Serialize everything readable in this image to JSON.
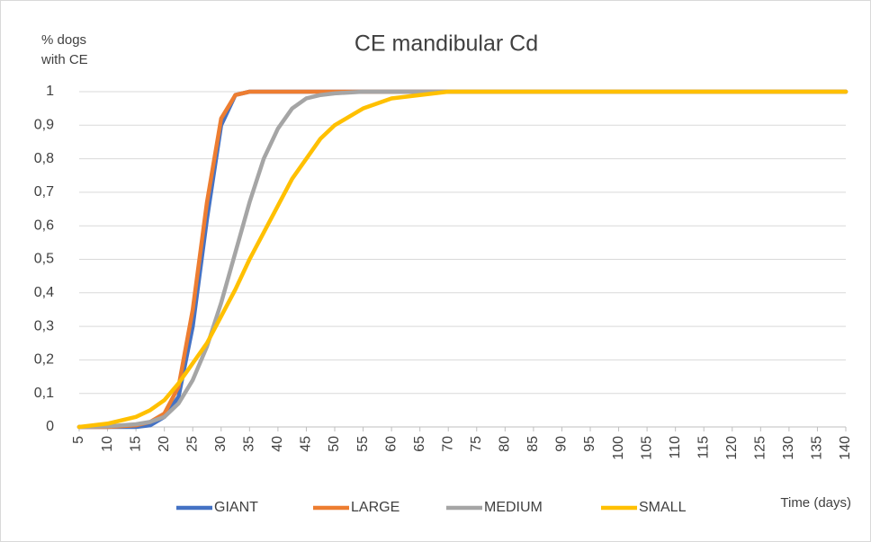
{
  "chart_data": {
    "type": "line",
    "title": "CE mandibular Cd",
    "y_label": "% dogs with CE",
    "x_label": "Time (days)",
    "x": [
      5,
      10,
      15,
      17.5,
      20,
      22.5,
      25,
      27.5,
      30,
      32.5,
      35,
      37.5,
      40,
      42.5,
      45,
      47.5,
      50,
      55,
      60,
      65,
      70,
      80,
      100,
      140
    ],
    "series": [
      {
        "name": "GIANT",
        "color": "#4472c4",
        "values": [
          0,
          0,
          0,
          0.005,
          0.03,
          0.09,
          0.3,
          0.62,
          0.9,
          0.99,
          1,
          1,
          1,
          1,
          1,
          1,
          1,
          1,
          1,
          1,
          1,
          1,
          1,
          1
        ]
      },
      {
        "name": "LARGE",
        "color": "#ed7d31",
        "values": [
          0,
          0,
          0.005,
          0.015,
          0.04,
          0.12,
          0.35,
          0.67,
          0.92,
          0.99,
          1,
          1,
          1,
          1,
          1,
          1,
          1,
          1,
          1,
          1,
          1,
          1,
          1,
          1
        ]
      },
      {
        "name": "MEDIUM",
        "color": "#a5a5a5",
        "values": [
          0,
          0.002,
          0.008,
          0.015,
          0.03,
          0.07,
          0.14,
          0.24,
          0.37,
          0.52,
          0.67,
          0.8,
          0.89,
          0.95,
          0.98,
          0.99,
          0.995,
          1,
          1,
          1,
          1,
          1,
          1,
          1
        ]
      },
      {
        "name": "SMALL",
        "color": "#ffc000",
        "values": [
          0,
          0.01,
          0.03,
          0.05,
          0.08,
          0.13,
          0.19,
          0.25,
          0.33,
          0.41,
          0.5,
          0.58,
          0.66,
          0.74,
          0.8,
          0.86,
          0.9,
          0.95,
          0.98,
          0.99,
          1,
          1,
          1,
          1
        ]
      }
    ],
    "xlim": [
      5,
      140
    ],
    "xticks": [
      5,
      10,
      15,
      20,
      25,
      30,
      35,
      40,
      45,
      50,
      55,
      60,
      65,
      70,
      75,
      80,
      85,
      90,
      95,
      100,
      105,
      110,
      115,
      120,
      125,
      130,
      135,
      140
    ],
    "ylim": [
      0,
      1
    ],
    "yticks": [
      0,
      {
        "value": 0.1,
        "label": "0,1"
      },
      {
        "value": 0.2,
        "label": "0,2"
      },
      {
        "value": 0.3,
        "label": "0,3"
      },
      {
        "value": 0.4,
        "label": "0,4"
      },
      {
        "value": 0.5,
        "label": "0,5"
      },
      {
        "value": 0.6,
        "label": "0,6"
      },
      {
        "value": 0.7,
        "label": "0,7"
      },
      {
        "value": 0.8,
        "label": "0,8"
      },
      {
        "value": 0.9,
        "label": "0,9"
      },
      1
    ],
    "grid": true,
    "legend": "bottom"
  }
}
